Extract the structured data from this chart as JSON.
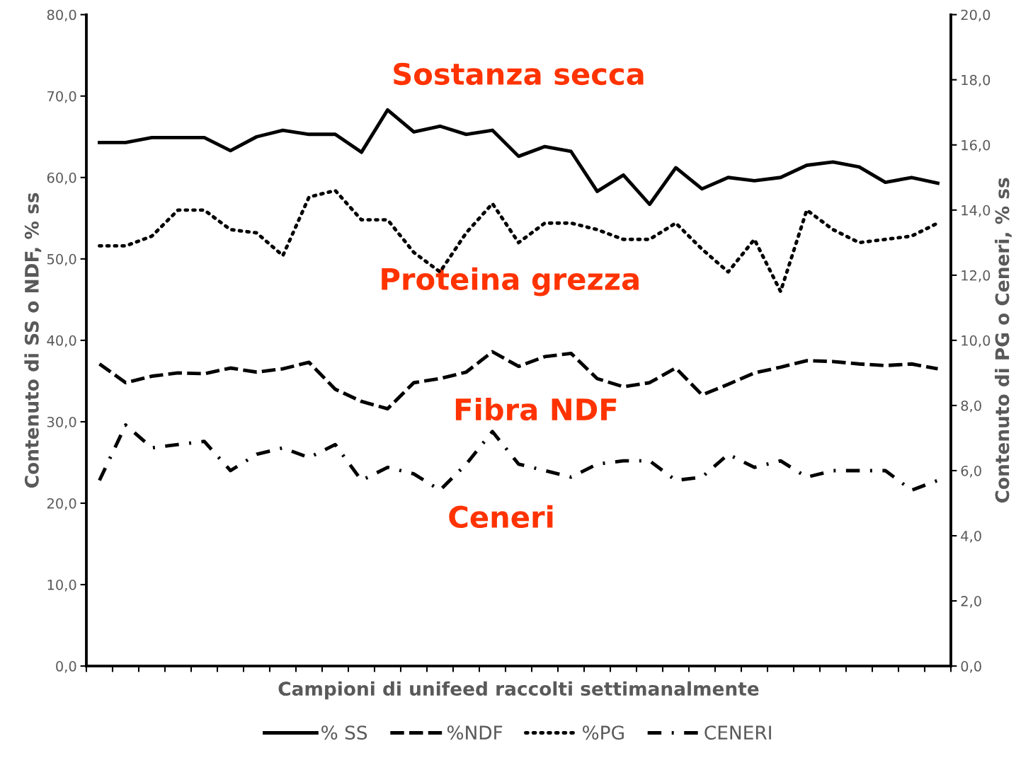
{
  "chart_data": {
    "type": "line",
    "xlabel": "Campioni di unifeed raccolti settimanalmente",
    "ylabel": "Contenuto di SS o NDF, % ss",
    "y2label": "Contenuto di PG o Ceneri, % ss",
    "categories": [
      null,
      null,
      null,
      null,
      null,
      null,
      null,
      null,
      null,
      null,
      null,
      null,
      null,
      null,
      null,
      null,
      null,
      null,
      null,
      null,
      null,
      null,
      null,
      null,
      null,
      null,
      null,
      null,
      null,
      null,
      null,
      null,
      null
    ],
    "series": [
      {
        "name": "% SS",
        "color": "#000000",
        "line_style": "solid",
        "axis": "y",
        "values": [
          64.3,
          64.3,
          64.9,
          64.9,
          64.9,
          63.3,
          65.0,
          65.8,
          65.3,
          65.3,
          63.1,
          68.3,
          65.6,
          66.3,
          65.3,
          65.8,
          62.6,
          63.8,
          63.2,
          58.3,
          60.3,
          56.7,
          61.2,
          58.6,
          60.0,
          59.6,
          60.0,
          61.5,
          61.9,
          61.3,
          59.4,
          60.0,
          59.3
        ]
      },
      {
        "name": "%NDF",
        "color": "#000000",
        "line_style": "dashed",
        "axis": "y",
        "values": [
          37.1,
          34.8,
          35.6,
          36.0,
          35.9,
          36.6,
          36.1,
          36.5,
          37.3,
          34.0,
          32.5,
          31.6,
          34.8,
          35.3,
          36.1,
          38.6,
          36.8,
          38.0,
          38.4,
          35.3,
          34.3,
          34.8,
          36.6,
          33.3,
          34.6,
          36.0,
          36.7,
          37.5,
          37.4,
          37.1,
          36.9,
          37.1,
          36.5
        ]
      },
      {
        "name": "%PG",
        "color": "#000000",
        "line_style": "dotted",
        "axis": "y2",
        "values": [
          12.9,
          12.9,
          13.2,
          14.0,
          14.0,
          13.4,
          13.3,
          12.6,
          14.4,
          14.6,
          13.7,
          13.7,
          12.7,
          12.1,
          13.3,
          14.2,
          13.0,
          13.6,
          13.6,
          13.4,
          13.1,
          13.1,
          13.6,
          12.8,
          12.1,
          13.1,
          11.5,
          14.0,
          13.4,
          13.0,
          13.1,
          13.2,
          13.6
        ]
      },
      {
        "name": "CENERI",
        "color": "#000000",
        "line_style": "dashdot",
        "axis": "y2",
        "values": [
          5.7,
          7.4,
          6.7,
          6.8,
          6.9,
          6.0,
          6.5,
          6.7,
          6.4,
          6.8,
          5.7,
          6.1,
          5.9,
          5.4,
          6.2,
          7.2,
          6.2,
          6.0,
          5.8,
          6.2,
          6.3,
          6.3,
          5.7,
          5.8,
          6.5,
          6.1,
          6.3,
          5.8,
          6.0,
          6.0,
          6.0,
          5.4,
          5.7
        ]
      }
    ],
    "ylim": [
      0,
      80
    ],
    "yticks": [
      {
        "value": 0,
        "label": "0,0"
      },
      {
        "value": 10,
        "label": "10,0"
      },
      {
        "value": 20,
        "label": "20,0"
      },
      {
        "value": 30,
        "label": "30,0"
      },
      {
        "value": 40,
        "label": "40,0"
      },
      {
        "value": 50,
        "label": "50,0"
      },
      {
        "value": 60,
        "label": "60,0"
      },
      {
        "value": 70,
        "label": "70,0"
      },
      {
        "value": 80,
        "label": "80,0"
      }
    ],
    "y2lim": [
      0,
      20
    ],
    "y2ticks": [
      {
        "value": 0,
        "label": "0,0"
      },
      {
        "value": 2,
        "label": "2,0"
      },
      {
        "value": 4,
        "label": "4,0"
      },
      {
        "value": 6,
        "label": "6,0"
      },
      {
        "value": 8,
        "label": "8,0"
      },
      {
        "value": 10,
        "label": "10,0"
      },
      {
        "value": 12,
        "label": "12,0"
      },
      {
        "value": 14,
        "label": "14,0"
      },
      {
        "value": 16,
        "label": "16,0"
      },
      {
        "value": 18,
        "label": "18,0"
      },
      {
        "value": 20,
        "label": "20,0"
      }
    ],
    "annotations": [
      "Sostanza secca",
      "Proteina grezza",
      "Fibra NDF",
      "Ceneri"
    ],
    "legend": "bottom",
    "grid": false,
    "marker": "none"
  }
}
